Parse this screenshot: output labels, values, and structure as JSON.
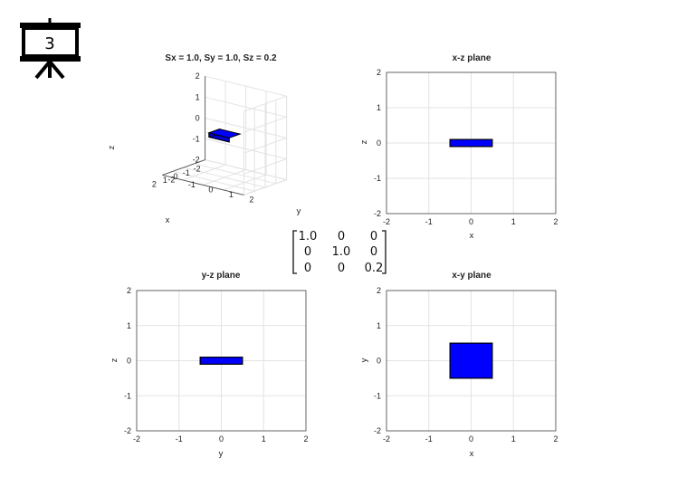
{
  "slide": {
    "number": "3",
    "icon": "presentation-board-icon"
  },
  "colors": {
    "shape_fill": "#0000ff",
    "shape_edge": "#000000",
    "grid": "#e3e3e3",
    "highlight": "#cc0000"
  },
  "matrix": {
    "rows": [
      [
        "1.0",
        "0",
        "0"
      ],
      [
        "0",
        "1.0",
        "0"
      ],
      [
        "0",
        "0",
        "0.2"
      ]
    ],
    "highlight_cell": [
      2,
      2
    ]
  },
  "chart_data": [
    {
      "id": "three-d",
      "type": "3d-box",
      "title": "Sx = 1.0, Sy = 1.0, Sz = 0.2",
      "xlabel": "x",
      "ylabel": "y",
      "zlabel": "z",
      "xlim": [
        -2,
        2
      ],
      "ylim": [
        -2,
        2
      ],
      "zlim": [
        -2,
        2
      ],
      "xticks": [
        "-2",
        "-1",
        "0",
        "1",
        "2"
      ],
      "yticks": [
        "-2",
        "-1",
        "0",
        "1",
        "2"
      ],
      "zticks": [
        "-2",
        "-1",
        "0",
        "1",
        "2"
      ],
      "box": {
        "x": [
          -0.5,
          0.5
        ],
        "y": [
          -0.5,
          0.5
        ],
        "z": [
          -0.1,
          0.1
        ]
      },
      "grid": true
    },
    {
      "id": "xz",
      "type": "rect",
      "title": "x-z plane",
      "xlabel": "x",
      "ylabel": "z",
      "xlim": [
        -2,
        2
      ],
      "ylim": [
        -2,
        2
      ],
      "xticks": [
        "-2",
        "-1",
        "0",
        "1",
        "2"
      ],
      "yticks": [
        "-2",
        "-1",
        "0",
        "1",
        "2"
      ],
      "rect": {
        "x": [
          -0.5,
          0.5
        ],
        "y": [
          -0.1,
          0.1
        ]
      },
      "grid": true
    },
    {
      "id": "yz",
      "type": "rect",
      "title": "y-z plane",
      "xlabel": "y",
      "ylabel": "z",
      "xlim": [
        -2,
        2
      ],
      "ylim": [
        -2,
        2
      ],
      "xticks": [
        "-2",
        "-1",
        "0",
        "1",
        "2"
      ],
      "yticks": [
        "-2",
        "-1",
        "0",
        "1",
        "2"
      ],
      "rect": {
        "x": [
          -0.5,
          0.5
        ],
        "y": [
          -0.1,
          0.1
        ]
      },
      "grid": true
    },
    {
      "id": "xy",
      "type": "rect",
      "title": "x-y plane",
      "xlabel": "x",
      "ylabel": "y",
      "xlim": [
        -2,
        2
      ],
      "ylim": [
        -2,
        2
      ],
      "xticks": [
        "-2",
        "-1",
        "0",
        "1",
        "2"
      ],
      "yticks": [
        "-2",
        "-1",
        "0",
        "1",
        "2"
      ],
      "rect": {
        "x": [
          -0.5,
          0.5
        ],
        "y": [
          -0.5,
          0.5
        ]
      },
      "grid": true
    }
  ]
}
